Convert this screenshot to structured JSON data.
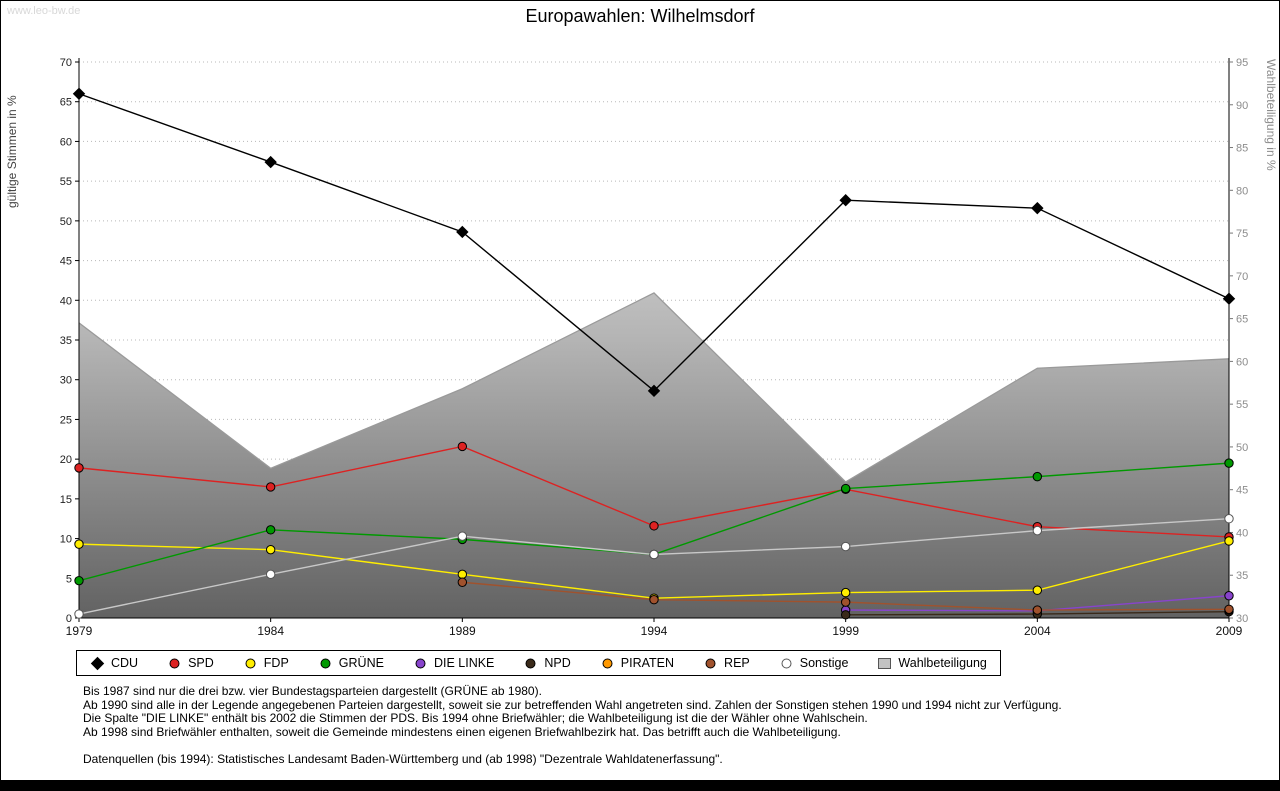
{
  "watermark": "www.leo-bw.de",
  "title": "Europawahlen: Wilhelmsdorf",
  "chart_data": {
    "type": "line",
    "title": "Europawahlen: Wilhelmsdorf",
    "x_labels": [
      "1979",
      "1984",
      "1989",
      "1994",
      "1999",
      "2004",
      "2009"
    ],
    "axes": {
      "left": {
        "label": "gültige Stimmen in %",
        "min": 0,
        "max": 70,
        "step": 5
      },
      "right": {
        "label": "Wahlbeteiligung in %",
        "min": 30,
        "max": 95,
        "step": 5
      }
    },
    "grid": true,
    "legend_position": "bottom",
    "series": [
      {
        "name": "CDU",
        "color": "#000000",
        "marker": "diamond",
        "axis": "left",
        "values": [
          66.0,
          57.4,
          48.6,
          28.6,
          52.6,
          51.6,
          40.2
        ]
      },
      {
        "name": "SPD",
        "color": "#dd2222",
        "marker": "circle",
        "axis": "left",
        "values": [
          18.9,
          16.5,
          21.6,
          11.6,
          16.2,
          11.5,
          10.2
        ]
      },
      {
        "name": "FDP",
        "color": "#ffee00",
        "marker": "circle",
        "axis": "left",
        "values": [
          9.3,
          8.6,
          5.5,
          2.5,
          3.2,
          3.5,
          9.7
        ]
      },
      {
        "name": "GRÜNE",
        "color": "#009900",
        "marker": "circle",
        "axis": "left",
        "values": [
          4.7,
          11.1,
          9.9,
          8.0,
          16.3,
          17.8,
          19.5
        ]
      },
      {
        "name": "DIE LINKE",
        "color": "#8844cc",
        "marker": "circle",
        "axis": "left",
        "values": [
          null,
          null,
          null,
          null,
          1.0,
          0.9,
          2.8
        ]
      },
      {
        "name": "NPD",
        "color": "#3a2a1a",
        "marker": "circle",
        "axis": "left",
        "values": [
          null,
          null,
          null,
          null,
          0.4,
          0.5,
          0.8
        ]
      },
      {
        "name": "PIRATEN",
        "color": "#ff9900",
        "marker": "circle",
        "axis": "left",
        "values": [
          null,
          null,
          null,
          null,
          null,
          null,
          1.0
        ]
      },
      {
        "name": "REP",
        "color": "#a0522d",
        "marker": "circle",
        "axis": "left",
        "values": [
          null,
          null,
          4.5,
          2.3,
          2.0,
          1.0,
          1.1
        ]
      },
      {
        "name": "Sonstige",
        "color": "#c8c8c8",
        "marker": "circle-open",
        "axis": "left",
        "values": [
          0.5,
          5.5,
          10.3,
          8.0,
          9.0,
          11.0,
          12.5
        ]
      },
      {
        "name": "Wahlbeteiligung",
        "color": "#aaaaaa",
        "marker": "square",
        "axis": "right",
        "area": true,
        "values": [
          64.5,
          47.5,
          56.8,
          68.0,
          45.9,
          59.2,
          60.3
        ]
      }
    ]
  },
  "footnotes": [
    "Bis 1987 sind nur die drei bzw. vier Bundestagsparteien dargestellt (GRÜNE ab 1980).",
    "Ab 1990 sind alle in der Legende angegebenen Parteien dargestellt, soweit sie zur betreffenden Wahl angetreten sind. Zahlen der Sonstigen stehen 1990 und 1994 nicht zur Verfügung.",
    "Die Spalte \"DIE LINKE\" enthält bis 2002 die Stimmen der PDS. Bis 1994 ohne Briefwähler; die Wahlbeteiligung ist die der Wähler ohne Wahlschein.",
    "Ab 1998 sind Briefwähler enthalten, soweit die Gemeinde mindestens einen eigenen Briefwahlbezirk hat. Das betrifft auch die Wahlbeteiligung."
  ],
  "source_note": "Datenquellen (bis 1994): Statistisches Landesamt Baden-Württemberg und (ab 1998) \"Dezentrale Wahldatenerfassung\"."
}
